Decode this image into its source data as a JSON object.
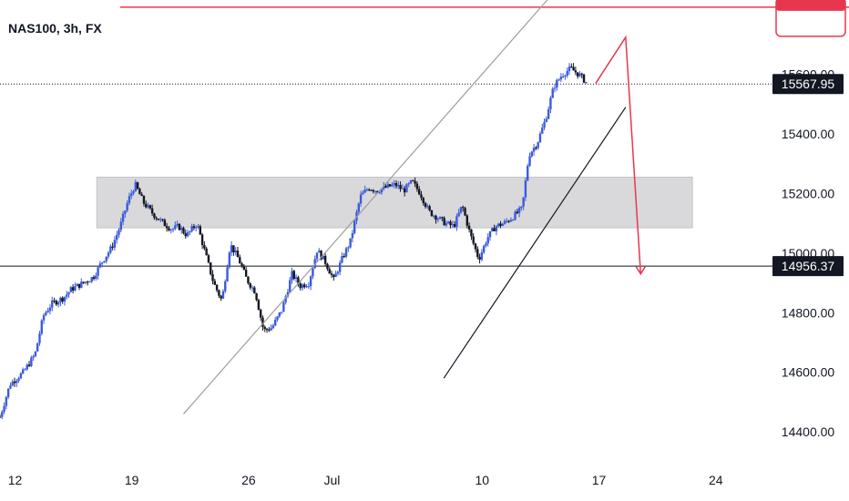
{
  "symbol": {
    "title": "NAS100, 3h, FX"
  },
  "colors": {
    "bull": "#3b5bdb",
    "bear": "#131722",
    "channel_upper": "#9e9e9e",
    "channel_lower": "#131722",
    "projection": "#e8364f",
    "zone_fill": "#d9d9db",
    "support_line": "#131722",
    "current_dotted": "#131722",
    "tag_bg": "#131722",
    "tag_text": "#ffffff"
  },
  "chart_data": {
    "type": "candlestick",
    "title": "NAS100, 3h, FX",
    "y_ticks": [
      "14400.00",
      "14600.00",
      "14800.00",
      "15000.00",
      "15200.00",
      "15400.00",
      "15600.00"
    ],
    "y_range": [
      14290,
      15850
    ],
    "x_ticks": [
      "12",
      "19",
      "26",
      "Jul",
      "10",
      "17",
      "24"
    ],
    "x_tick_days": [
      0,
      7,
      14,
      19,
      28,
      35,
      42
    ],
    "x_range_days": [
      -0.9,
      45.4
    ],
    "current_price_tag": "15567.95",
    "support_price_tag": "14956.37",
    "support_level": 14956.37,
    "current_price": 15567.95,
    "resistance_level": 15826,
    "zone": {
      "low": 15085,
      "high": 15255,
      "day_start": 4.9,
      "day_end": 40.6
    },
    "upper_channel_line": [
      [
        10.1,
        14460
      ],
      [
        31.9,
        15850
      ]
    ],
    "lower_channel_line": [
      [
        25.7,
        14580
      ],
      [
        36.6,
        15490
      ]
    ],
    "projection_path": [
      [
        34.8,
        15570
      ],
      [
        36.6,
        15725
      ],
      [
        37.5,
        14930
      ]
    ],
    "price_path": [
      [
        -0.9,
        14450
      ],
      [
        -0.3,
        14560
      ],
      [
        0.5,
        14600
      ],
      [
        1.2,
        14660
      ],
      [
        1.7,
        14790
      ],
      [
        2.2,
        14830
      ],
      [
        2.9,
        14850
      ],
      [
        3.4,
        14880
      ],
      [
        4.1,
        14900
      ],
      [
        4.7,
        14920
      ],
      [
        5.2,
        14970
      ],
      [
        5.8,
        15020
      ],
      [
        6.3,
        15090
      ],
      [
        6.8,
        15180
      ],
      [
        7.2,
        15230
      ],
      [
        7.7,
        15170
      ],
      [
        8.3,
        15130
      ],
      [
        8.9,
        15100
      ],
      [
        9.4,
        15080
      ],
      [
        9.8,
        15090
      ],
      [
        10.3,
        15060
      ],
      [
        10.9,
        15100
      ],
      [
        11.4,
        15000
      ],
      [
        11.9,
        14900
      ],
      [
        12.4,
        14840
      ],
      [
        12.9,
        15030
      ],
      [
        13.4,
        14980
      ],
      [
        13.9,
        14910
      ],
      [
        14.4,
        14870
      ],
      [
        14.9,
        14740
      ],
      [
        15.4,
        14750
      ],
      [
        16.0,
        14810
      ],
      [
        16.6,
        14930
      ],
      [
        17.1,
        14890
      ],
      [
        17.6,
        14900
      ],
      [
        18.1,
        15010
      ],
      [
        18.6,
        14970
      ],
      [
        19.1,
        14910
      ],
      [
        19.6,
        14980
      ],
      [
        20.1,
        15040
      ],
      [
        20.7,
        15190
      ],
      [
        21.2,
        15220
      ],
      [
        21.7,
        15210
      ],
      [
        22.2,
        15220
      ],
      [
        22.8,
        15230
      ],
      [
        23.3,
        15210
      ],
      [
        23.8,
        15240
      ],
      [
        24.3,
        15200
      ],
      [
        24.8,
        15140
      ],
      [
        25.3,
        15120
      ],
      [
        25.8,
        15100
      ],
      [
        26.3,
        15090
      ],
      [
        26.8,
        15160
      ],
      [
        27.3,
        15060
      ],
      [
        27.8,
        14980
      ],
      [
        28.3,
        15050
      ],
      [
        28.8,
        15090
      ],
      [
        29.3,
        15100
      ],
      [
        29.8,
        15120
      ],
      [
        30.4,
        15150
      ],
      [
        30.8,
        15330
      ],
      [
        31.3,
        15370
      ],
      [
        31.8,
        15450
      ],
      [
        32.3,
        15560
      ],
      [
        32.8,
        15600
      ],
      [
        33.3,
        15620
      ],
      [
        33.8,
        15600
      ],
      [
        34.3,
        15570
      ]
    ]
  }
}
